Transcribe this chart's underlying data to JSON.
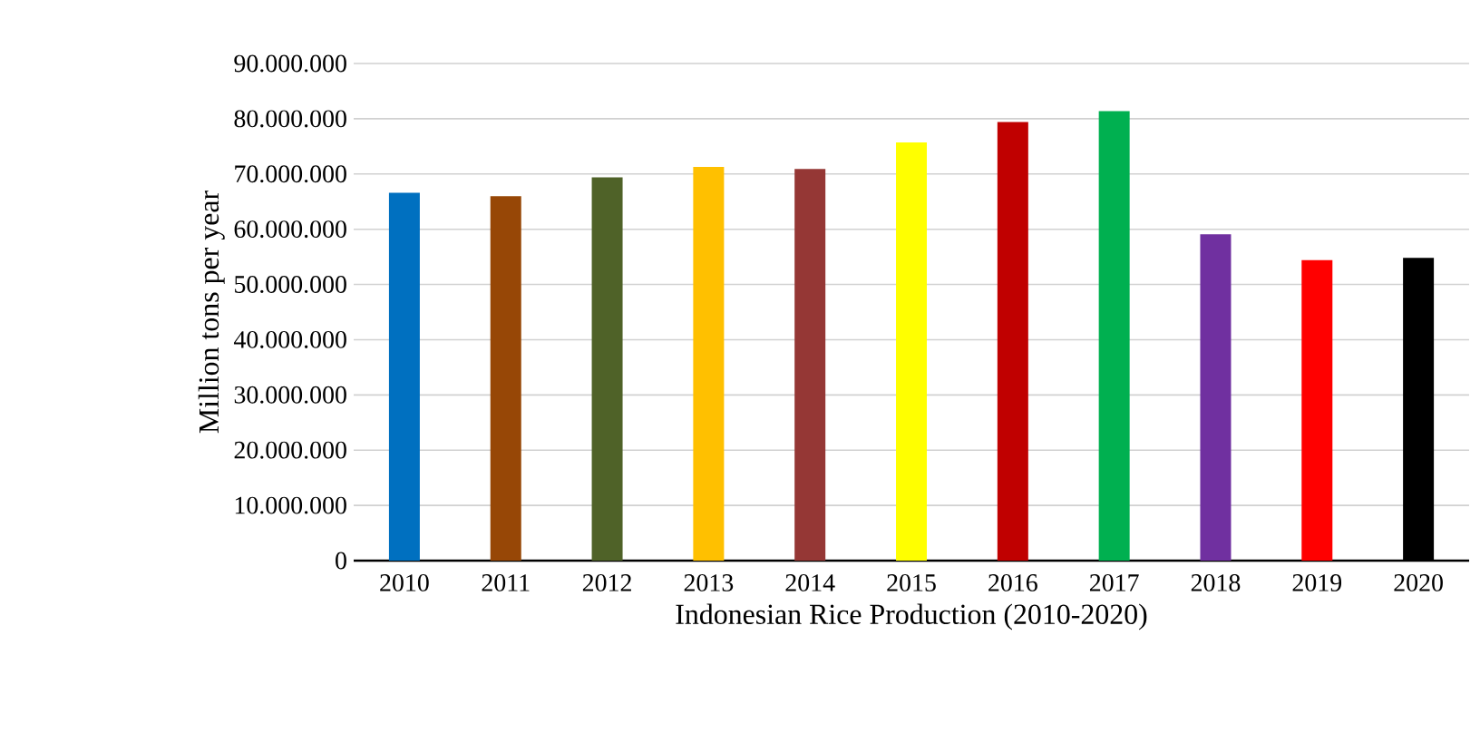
{
  "chart_data": {
    "type": "bar",
    "xlabel": "Indonesian Rice Production (2010-2020)",
    "ylabel": "Million tons per year",
    "categories": [
      "2010",
      "2011",
      "2012",
      "2013",
      "2014",
      "2015",
      "2016",
      "2017",
      "2018",
      "2019",
      "2020"
    ],
    "values": [
      66600000,
      66000000,
      69400000,
      71300000,
      70900000,
      75700000,
      79400000,
      81400000,
      59100000,
      54400000,
      54800000
    ],
    "colors": [
      "#0070c0",
      "#974706",
      "#4f6228",
      "#ffc000",
      "#953735",
      "#ffff00",
      "#c00000",
      "#00b050",
      "#7030a0",
      "#ff0000",
      "#000000"
    ],
    "ylim": [
      0,
      90000000
    ],
    "yticks": [
      0,
      {
        "value": 10000000,
        "label": "10.000.000"
      },
      {
        "value": 20000000,
        "label": "20.000.000"
      },
      {
        "value": 30000000,
        "label": "30.000.000"
      },
      {
        "value": 40000000,
        "label": "40.000.000"
      },
      {
        "value": 50000000,
        "label": "50.000.000"
      },
      {
        "value": 60000000,
        "label": "60.000.000"
      },
      {
        "value": 70000000,
        "label": "70.000.000"
      },
      {
        "value": 80000000,
        "label": "80.000.000"
      },
      {
        "value": 90000000,
        "label": "90.000.000"
      }
    ],
    "grid": "y"
  }
}
